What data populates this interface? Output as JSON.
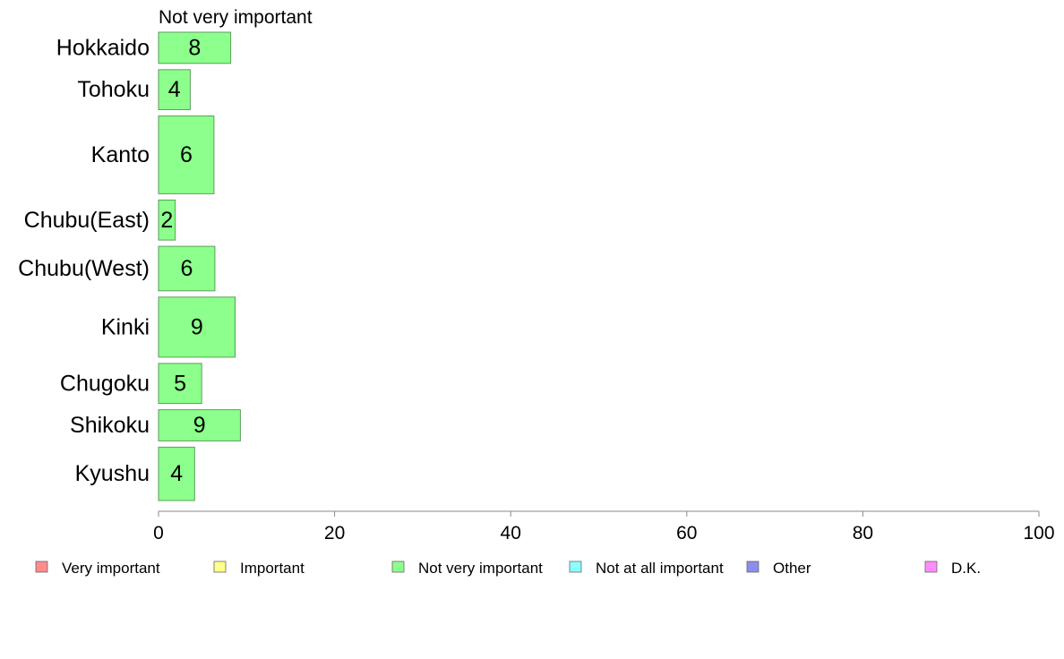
{
  "chart_data": {
    "type": "bar",
    "orientation": "horizontal",
    "title": "Not very important",
    "categories": [
      "Hokkaido",
      "Tohoku",
      "Kanto",
      "Chubu(East)",
      "Chubu(West)",
      "Kinki",
      "Chugoku",
      "Shikoku",
      "Kyushu"
    ],
    "values": [
      8.2,
      3.6,
      6.3,
      1.9,
      6.4,
      8.7,
      4.9,
      9.3,
      4.1
    ],
    "data_labels": [
      "8",
      "4",
      "6",
      "2",
      "6",
      "9",
      "5",
      "9",
      "4"
    ],
    "bar_weights": [
      0.7,
      0.9,
      1.75,
      0.9,
      1.0,
      1.35,
      0.9,
      0.7,
      1.2
    ],
    "xlim": [
      0,
      100
    ],
    "xticks": [
      0,
      20,
      40,
      60,
      80,
      100
    ],
    "xlabel": "",
    "ylabel": "",
    "grid": false,
    "bar_color": "#8cff8c",
    "bar_edge_color": "#5c9e5c",
    "legend_position": "bottom",
    "legend": [
      {
        "label": "Very important",
        "color": "#ff8c8c"
      },
      {
        "label": "Important",
        "color": "#ffff8c"
      },
      {
        "label": "Not very important",
        "color": "#8cff8c"
      },
      {
        "label": "Not at all important",
        "color": "#8cffff"
      },
      {
        "label": "Other",
        "color": "#8c8cf0"
      },
      {
        "label": "D.K.",
        "color": "#ff8cff"
      }
    ]
  }
}
